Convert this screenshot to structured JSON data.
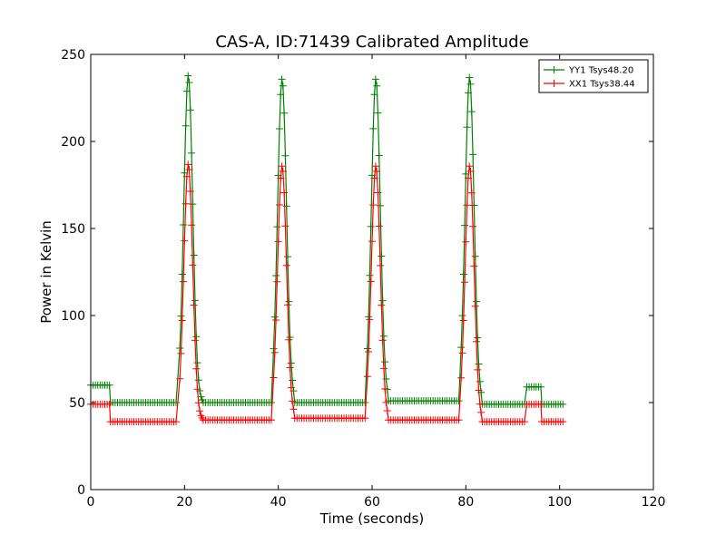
{
  "chart_data": {
    "type": "line",
    "title": "CAS-A, ID:71439 Calibrated Amplitude",
    "xlabel": "Time (seconds)",
    "ylabel": "Power in Kelvin",
    "xlim": [
      0,
      120
    ],
    "ylim": [
      0,
      250
    ],
    "xticks": [
      0,
      20,
      40,
      60,
      80,
      100,
      120
    ],
    "yticks": [
      0,
      50,
      100,
      150,
      200,
      250
    ],
    "grid": false,
    "legend_position": "top-right",
    "marker": "+",
    "series": [
      {
        "name": "YY1 Tsys48.20",
        "color": "#008000",
        "baseline_segments": [
          {
            "from": 0,
            "to": 4,
            "value": 60
          },
          {
            "from": 4.2,
            "to": 18.5,
            "value": 50
          },
          {
            "from": 24,
            "to": 38.5,
            "value": 50
          },
          {
            "from": 43.5,
            "to": 58.5,
            "value": 50
          },
          {
            "from": 63.5,
            "to": 78.5,
            "value": 51
          },
          {
            "from": 83.5,
            "to": 92.8,
            "value": 49
          },
          {
            "from": 93,
            "to": 96,
            "value": 59
          },
          {
            "from": 96.2,
            "to": 101,
            "value": 49
          }
        ],
        "peaks": [
          {
            "x": 20.8,
            "value": 238
          },
          {
            "x": 40.8,
            "value": 236
          },
          {
            "x": 60.8,
            "value": 236
          },
          {
            "x": 80.8,
            "value": 237
          }
        ]
      },
      {
        "name": "XX1 Tsys38.44",
        "color": "#ff0000",
        "baseline_segments": [
          {
            "from": 0,
            "to": 4,
            "value": 49
          },
          {
            "from": 4.2,
            "to": 18.5,
            "value": 39
          },
          {
            "from": 24,
            "to": 38.5,
            "value": 40
          },
          {
            "from": 43.5,
            "to": 58.5,
            "value": 41
          },
          {
            "from": 63.5,
            "to": 78.5,
            "value": 40
          },
          {
            "from": 83.5,
            "to": 92.8,
            "value": 39
          },
          {
            "from": 93,
            "to": 96,
            "value": 49
          },
          {
            "from": 96.2,
            "to": 101,
            "value": 39
          }
        ],
        "peaks": [
          {
            "x": 20.8,
            "value": 187
          },
          {
            "x": 40.8,
            "value": 186
          },
          {
            "x": 60.8,
            "value": 186
          },
          {
            "x": 80.8,
            "value": 186
          }
        ]
      }
    ]
  }
}
